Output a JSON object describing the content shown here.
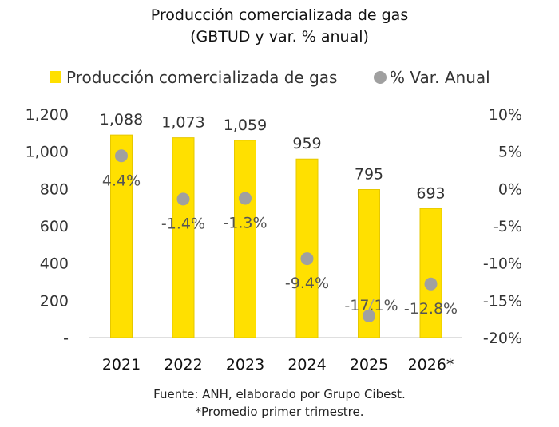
{
  "title": "Producción comercializada de gas",
  "subtitle": "(GBTUD y var. % anual)",
  "footer": {
    "source": "Fuente: ANH, elaborado por Grupo Cibest.",
    "note": "*Promedio primer trimestre."
  },
  "colors": {
    "bar": "#FFE000",
    "bar_stroke": "#E6C800",
    "marker": "#A0A0A0",
    "text": "#333333",
    "axis": "#BFBFBF"
  },
  "chart_data": {
    "type": "bar",
    "categories": [
      "2021",
      "2022",
      "2023",
      "2024",
      "2025",
      "2026*"
    ],
    "series": [
      {
        "name": "Producción comercializada de gas",
        "type": "bar",
        "axis": "left",
        "values": [
          1088,
          1073,
          1059,
          959,
          795,
          693
        ],
        "labels": [
          "1,088",
          "1,073",
          "1,059",
          "959",
          "795",
          "693"
        ]
      },
      {
        "name": "% Var. Anual",
        "type": "scatter",
        "axis": "right",
        "values": [
          4.4,
          -1.4,
          -1.3,
          -9.4,
          -17.1,
          -12.8
        ],
        "labels": [
          "4.4%",
          "-1.4%",
          "-1.3%",
          "-9.4%",
          "-17.1%",
          "-12.8%"
        ]
      }
    ],
    "left_axis": {
      "ylim": [
        0,
        1200
      ],
      "ticks": [
        0,
        200,
        400,
        600,
        800,
        1000,
        1200
      ],
      "tick_labels": [
        "-",
        "200",
        "400",
        "600",
        "800",
        "1,000",
        "1,200"
      ]
    },
    "right_axis": {
      "ylim": [
        -20,
        10
      ],
      "ticks": [
        -20,
        -15,
        -10,
        -5,
        0,
        5,
        10
      ],
      "tick_labels": [
        "-20%",
        "-15%",
        "-10%",
        "-5%",
        "0%",
        "5%",
        "10%"
      ]
    },
    "legend_position": "top",
    "grid": false
  }
}
